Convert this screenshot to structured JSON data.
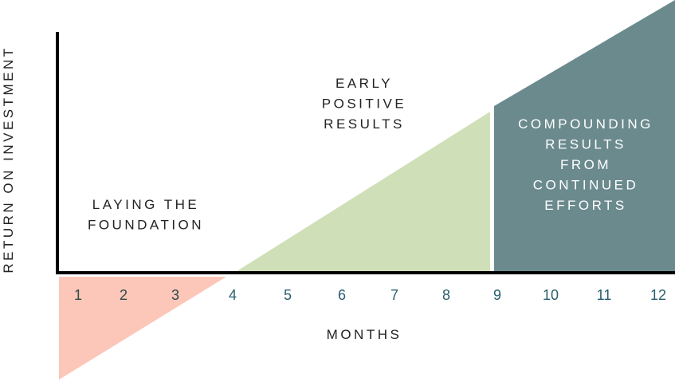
{
  "chart_data": {
    "type": "area",
    "xlabel": "MONTHS",
    "ylabel": "RETURN ON INVESTMENT",
    "x_ticks": [
      "1",
      "2",
      "3",
      "4",
      "5",
      "6",
      "7",
      "8",
      "9",
      "10",
      "11",
      "12"
    ],
    "grid": false,
    "regions": [
      {
        "label_lines": [
          "LAYING THE",
          "FOUNDATION"
        ],
        "x_range": [
          0,
          3.85
        ],
        "color": "#fcc6b8",
        "sign": "negative"
      },
      {
        "label_lines": [
          "EARLY",
          "POSITIVE",
          "RESULTS"
        ],
        "x_range": [
          4,
          8.85
        ],
        "color": "#cfe0b8",
        "sign": "positive"
      },
      {
        "label_lines": [
          "COMPOUNDING",
          "RESULTS",
          "FROM",
          "CONTINUED",
          "EFFORTS"
        ],
        "x_range": [
          9,
          12.3
        ],
        "color": "#6b8a8e",
        "sign": "positive"
      }
    ],
    "colors": {
      "axis": "#000000",
      "tick_early": "#2f4a4a",
      "tick_late": "#2a5f6e",
      "label_on_dark": "#ffffff"
    }
  }
}
